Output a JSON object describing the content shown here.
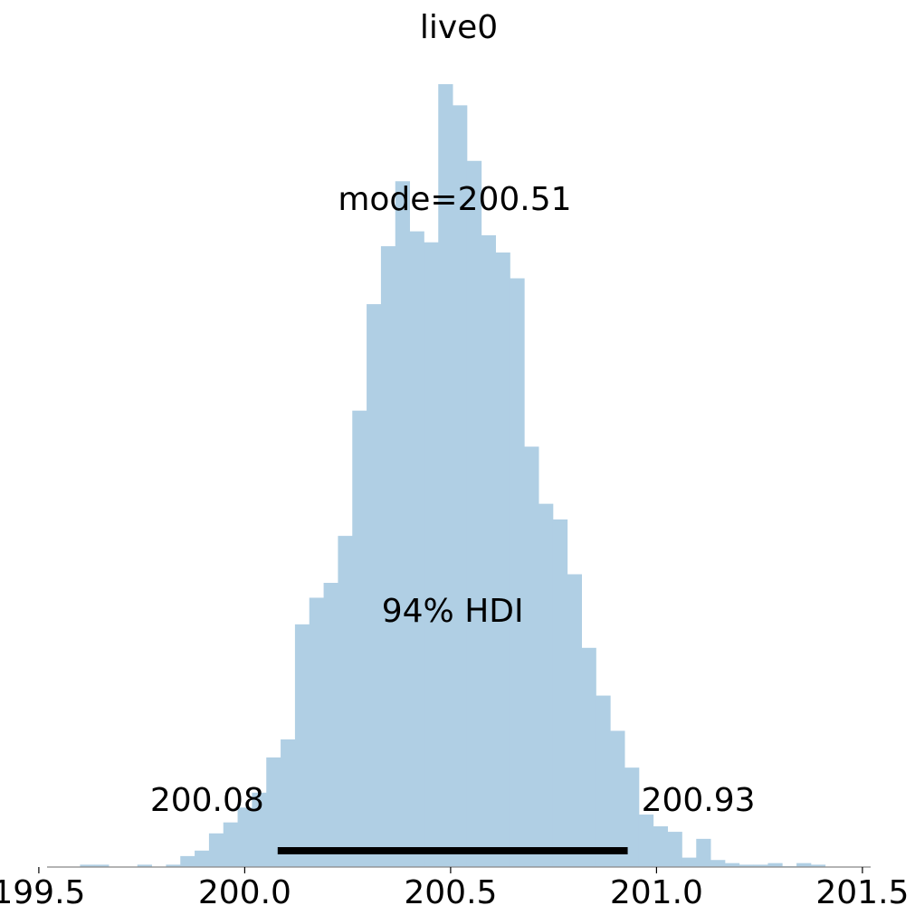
{
  "chart_data": {
    "type": "bar",
    "title": "live0",
    "xlabel": "",
    "ylabel": "",
    "xlim": [
      199.52,
      201.52
    ],
    "ylim": [
      0,
      1
    ],
    "grid": false,
    "show_y_axis": false,
    "bar_color": "#b0cfe4",
    "hdi_color": "#000000",
    "bin_start": 199.6,
    "bin_width": 0.0348,
    "bin_heights": [
      0.003,
      0.003,
      0.0,
      0.0,
      0.003,
      0.0,
      0.003,
      0.014,
      0.021,
      0.043,
      0.057,
      0.076,
      0.095,
      0.14,
      0.163,
      0.31,
      0.344,
      0.363,
      0.423,
      0.583,
      0.719,
      0.793,
      0.876,
      0.812,
      0.798,
      1.0,
      0.973,
      0.902,
      0.807,
      0.785,
      0.752,
      0.537,
      0.464,
      0.444,
      0.374,
      0.28,
      0.219,
      0.174,
      0.127,
      0.067,
      0.052,
      0.045,
      0.012,
      0.036,
      0.009,
      0.005,
      0.003,
      0.003,
      0.005,
      0.001,
      0.005,
      0.003,
      0.0
    ],
    "x_ticks": [
      {
        "value": 199.5,
        "label": "199.5"
      },
      {
        "value": 200.0,
        "label": "200.0"
      },
      {
        "value": 200.5,
        "label": "200.5"
      },
      {
        "value": 201.0,
        "label": "201.0"
      },
      {
        "value": 201.5,
        "label": "201.5"
      }
    ],
    "mode": {
      "value": 200.51,
      "label": "mode=200.51"
    },
    "hdi": {
      "prob_label": "94% HDI",
      "low": 200.08,
      "high": 200.93,
      "low_label": "200.08",
      "high_label": "200.93"
    }
  }
}
